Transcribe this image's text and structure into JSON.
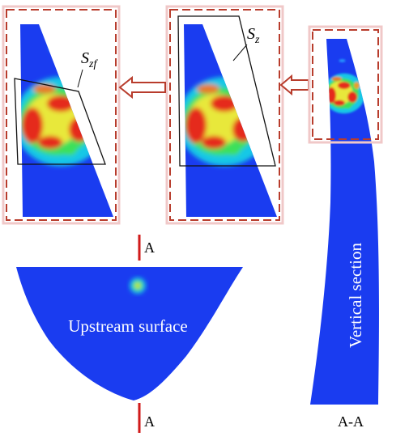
{
  "labels": {
    "region_fixed": {
      "symbol": "S",
      "subscript": "zf"
    },
    "region": {
      "symbol": "S",
      "subscript": "z"
    }
  },
  "section_marks": {
    "top": "A",
    "bottom": "A"
  },
  "upstream_surface": "Upstream surface",
  "vertical_section": "Vertical section",
  "section_caption": "A-A"
}
